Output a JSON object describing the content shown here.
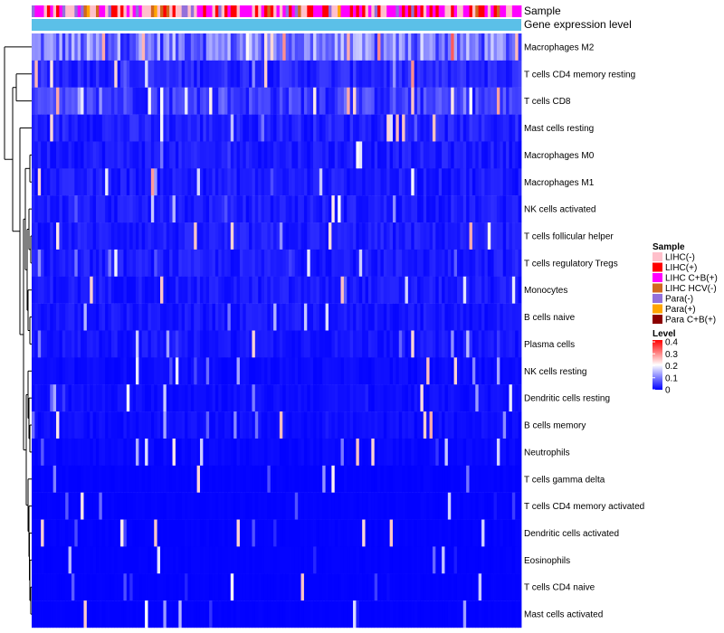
{
  "chart_data": {
    "type": "heatmap",
    "annotation_rows": [
      "Sample",
      "Gene expression level"
    ],
    "rows": [
      "Macrophages M2",
      "T cells CD4 memory resting",
      "T cells CD8",
      "Mast cells resting",
      "Macrophages M0",
      "Macrophages M1",
      "NK cells activated",
      "T cells follicular helper",
      "T cells regulatory  Tregs",
      "Monocytes",
      "B cells naive",
      "Plasma cells",
      "NK cells resting",
      "Dendritic cells resting",
      "B cells memory",
      "Neutrophils",
      "T cells gamma delta",
      "T cells CD4 memory activated",
      "Dendritic cells activated",
      "Eosinophils",
      "T cells CD4 naive",
      "Mast cells activated"
    ],
    "approx_row_mean_fraction": [
      0.22,
      0.07,
      0.11,
      0.06,
      0.05,
      0.05,
      0.05,
      0.05,
      0.05,
      0.045,
      0.04,
      0.04,
      0.02,
      0.025,
      0.025,
      0.015,
      0.006,
      0.006,
      0.006,
      0.005,
      0.004,
      0.004
    ],
    "n_samples": 160,
    "legends": {
      "sample": {
        "title": "Sample",
        "items": [
          {
            "label": "LIHC(-)",
            "color": "#ffc0cb"
          },
          {
            "label": "LIHC(+)",
            "color": "#ff0000"
          },
          {
            "label": "LIHC C+B(+)",
            "color": "#ff00ff"
          },
          {
            "label": "LIHC HCV(-)",
            "color": "#d2691e"
          },
          {
            "label": "Para(-)",
            "color": "#9370db"
          },
          {
            "label": "Para(+)",
            "color": "#ffa500"
          },
          {
            "label": "Para C+B(+)",
            "color": "#8b0000"
          }
        ]
      },
      "level": {
        "title": "Level",
        "ticks": [
          "0.4",
          "0.3",
          "0.2",
          "0.1",
          "0"
        ],
        "tick_values": [
          0.4,
          0.3,
          0.2,
          0.1,
          0
        ],
        "range": [
          0,
          0.4
        ],
        "colors": [
          "#0000ff",
          "#ffffff",
          "#ff0000"
        ]
      }
    },
    "gene_expression_color": "#5bc0e8"
  }
}
